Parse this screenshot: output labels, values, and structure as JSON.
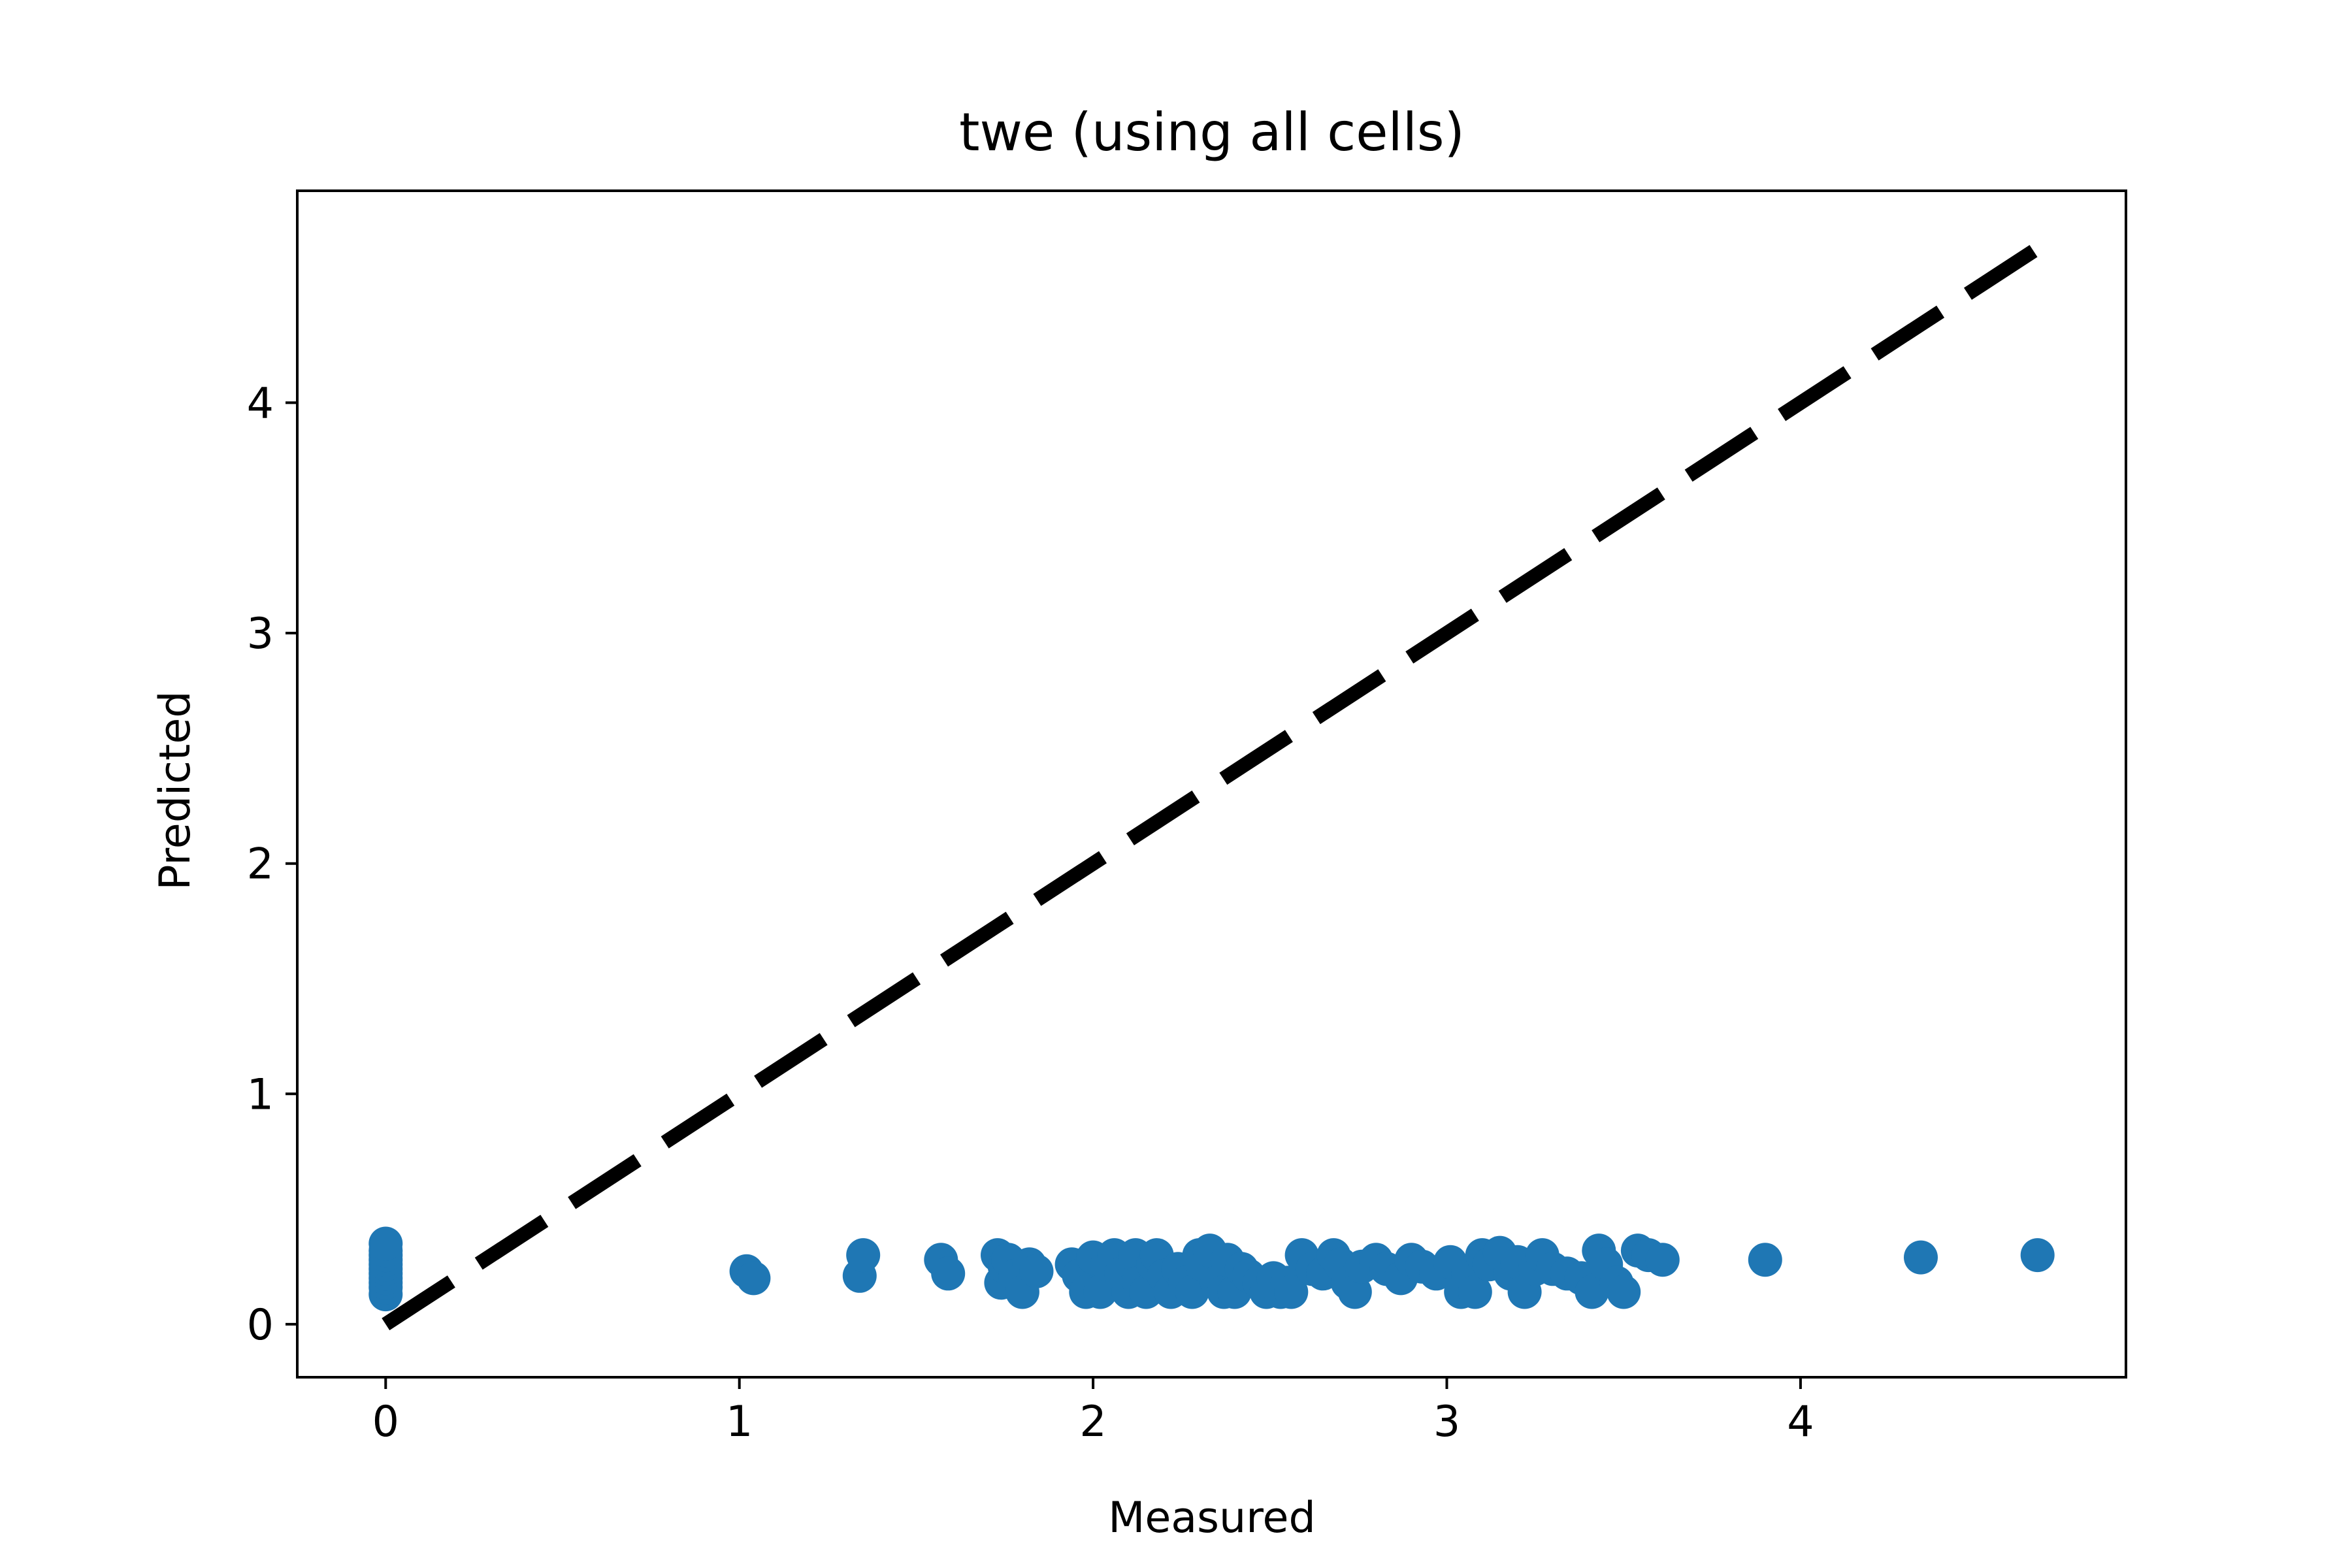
{
  "chart_data": {
    "type": "scatter",
    "title": "twe (using all cells)",
    "xlabel": "Measured",
    "ylabel": "Predicted",
    "xlim": [
      -0.25,
      4.92
    ],
    "ylim": [
      -0.23,
      4.92
    ],
    "xticks": [
      0,
      1,
      2,
      3,
      4
    ],
    "yticks": [
      0,
      1,
      2,
      3,
      4
    ],
    "grid": false,
    "legend": "none",
    "colors": {
      "points": "#1f77b4",
      "identity_line": "#000000",
      "axes": "#000000"
    },
    "identity_line": {
      "style": "dashed",
      "x": [
        0,
        4.67
      ],
      "y": [
        0,
        4.67
      ]
    },
    "series": [
      {
        "x": [
          0,
          0,
          0,
          0,
          0,
          0,
          0,
          0,
          0,
          0,
          0,
          1.02,
          1.04,
          1.34,
          1.35,
          1.57,
          1.59,
          1.73,
          1.74,
          1.75,
          1.76,
          1.78,
          1.8,
          1.82,
          1.84,
          1.94,
          1.96,
          1.98,
          2.0,
          2.02,
          2.04,
          2.06,
          2.08,
          2.1,
          2.12,
          2.13,
          2.15,
          2.17,
          2.18,
          2.2,
          2.22,
          2.24,
          2.26,
          2.28,
          2.3,
          2.31,
          2.33,
          2.35,
          2.37,
          2.38,
          2.4,
          2.42,
          2.44,
          2.47,
          2.49,
          2.51,
          2.53,
          2.55,
          2.56,
          2.59,
          2.62,
          2.65,
          2.68,
          2.7,
          2.72,
          2.74,
          2.76,
          2.8,
          2.83,
          2.87,
          2.9,
          2.93,
          2.97,
          3.01,
          3.04,
          3.06,
          3.08,
          3.1,
          3.12,
          3.15,
          3.18,
          3.2,
          3.22,
          3.25,
          3.27,
          3.3,
          3.34,
          3.38,
          3.41,
          3.43,
          3.45,
          3.48,
          3.5,
          3.54,
          3.57,
          3.61,
          3.9,
          4.34,
          4.67
        ],
        "y": [
          0.13,
          0.16,
          0.18,
          0.2,
          0.22,
          0.24,
          0.26,
          0.28,
          0.3,
          0.32,
          0.35,
          0.23,
          0.2,
          0.21,
          0.3,
          0.28,
          0.22,
          0.3,
          0.18,
          0.25,
          0.28,
          0.21,
          0.14,
          0.26,
          0.23,
          0.26,
          0.21,
          0.14,
          0.29,
          0.14,
          0.26,
          0.3,
          0.22,
          0.14,
          0.3,
          0.18,
          0.14,
          0.26,
          0.3,
          0.21,
          0.14,
          0.24,
          0.18,
          0.14,
          0.3,
          0.26,
          0.32,
          0.18,
          0.14,
          0.28,
          0.14,
          0.24,
          0.21,
          0.18,
          0.14,
          0.2,
          0.14,
          0.18,
          0.14,
          0.3,
          0.24,
          0.22,
          0.3,
          0.26,
          0.18,
          0.14,
          0.25,
          0.28,
          0.24,
          0.2,
          0.28,
          0.25,
          0.22,
          0.27,
          0.14,
          0.22,
          0.14,
          0.3,
          0.26,
          0.31,
          0.22,
          0.27,
          0.14,
          0.24,
          0.3,
          0.24,
          0.22,
          0.2,
          0.14,
          0.32,
          0.26,
          0.18,
          0.14,
          0.32,
          0.3,
          0.28,
          0.28,
          0.29,
          0.3
        ]
      }
    ]
  }
}
